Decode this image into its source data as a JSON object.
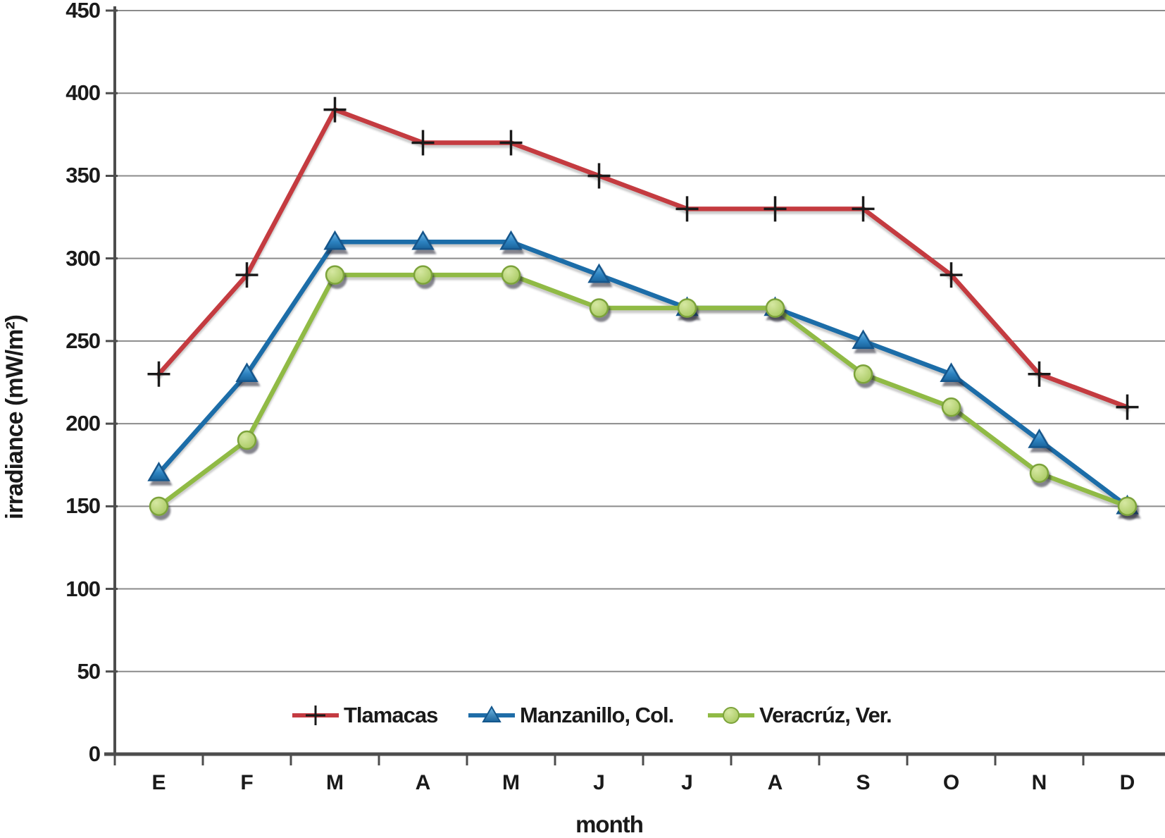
{
  "chart_data": {
    "type": "line",
    "title": "",
    "xlabel": "month",
    "ylabel": "irradiance (mW/m²)",
    "ylim": [
      0,
      450
    ],
    "y_tick_step": 50,
    "y_ticks": [
      0,
      50,
      100,
      150,
      200,
      250,
      300,
      350,
      400,
      450
    ],
    "grid": true,
    "legend_position": "bottom-inside",
    "categories": [
      "E",
      "F",
      "M",
      "A",
      "M",
      "J",
      "J",
      "A",
      "S",
      "O",
      "N",
      "D"
    ],
    "series": [
      {
        "name": "Tlamacas",
        "marker": "plus",
        "color": "#C43B41",
        "values": [
          230,
          290,
          390,
          370,
          370,
          350,
          330,
          330,
          330,
          290,
          230,
          210
        ]
      },
      {
        "name": "Manzanillo, Col.",
        "marker": "triangle",
        "color": "#1F6DA8",
        "values": [
          170,
          230,
          310,
          310,
          310,
          290,
          270,
          270,
          250,
          230,
          190,
          150
        ]
      },
      {
        "name": "Veracrúz, Ver.",
        "marker": "circle",
        "color": "#90BA45",
        "values": [
          150,
          190,
          290,
          290,
          290,
          270,
          270,
          270,
          230,
          210,
          170,
          150
        ]
      }
    ],
    "colors": {
      "gridline": "#8B8B8B",
      "axis": "#4D4D4D",
      "text": "#1A1A1A",
      "background": "#FFFFFF"
    }
  }
}
